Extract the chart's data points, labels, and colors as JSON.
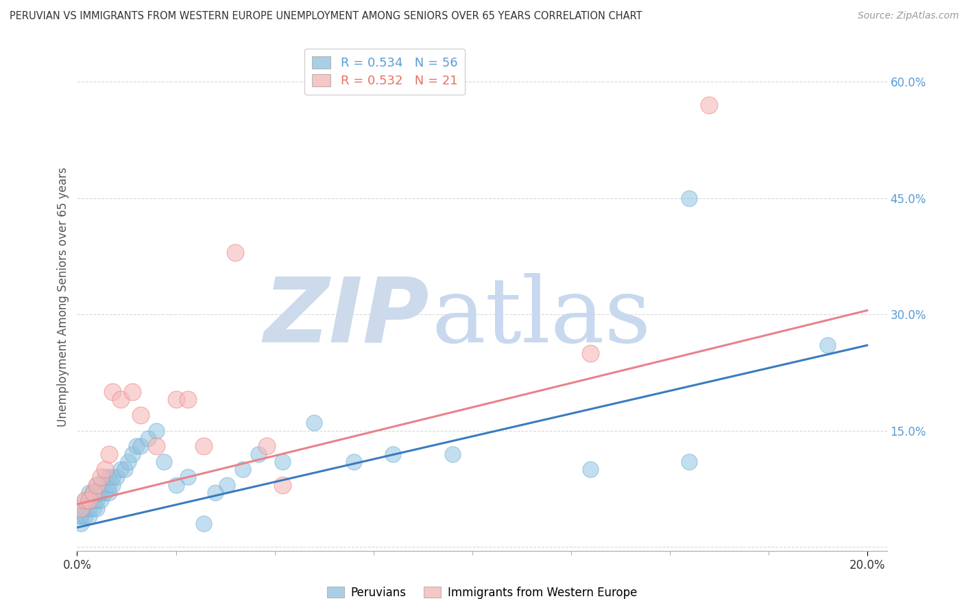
{
  "title": "PERUVIAN VS IMMIGRANTS FROM WESTERN EUROPE UNEMPLOYMENT AMONG SENIORS OVER 65 YEARS CORRELATION CHART",
  "source": "Source: ZipAtlas.com",
  "ylabel": "Unemployment Among Seniors over 65 years",
  "xlim": [
    0.0,
    0.205
  ],
  "ylim": [
    -0.005,
    0.65
  ],
  "yticks": [
    0.0,
    0.15,
    0.3,
    0.45,
    0.6
  ],
  "ytick_labels": [
    "",
    "15.0%",
    "30.0%",
    "45.0%",
    "60.0%"
  ],
  "blue_R": 0.534,
  "blue_N": 56,
  "pink_R": 0.532,
  "pink_N": 21,
  "blue_color": "#93c4e0",
  "pink_color": "#f5b8b8",
  "blue_edge_color": "#6aadd5",
  "pink_edge_color": "#f08080",
  "blue_line_color": "#3a7bbf",
  "pink_line_color": "#e8828a",
  "legend_label_blue": "Peruvians",
  "legend_label_pink": "Immigrants from Western Europe",
  "blue_x": [
    0.001,
    0.001,
    0.001,
    0.002,
    0.002,
    0.002,
    0.002,
    0.003,
    0.003,
    0.003,
    0.003,
    0.003,
    0.004,
    0.004,
    0.004,
    0.004,
    0.005,
    0.005,
    0.005,
    0.005,
    0.006,
    0.006,
    0.006,
    0.007,
    0.007,
    0.008,
    0.008,
    0.008,
    0.009,
    0.009,
    0.01,
    0.011,
    0.012,
    0.013,
    0.014,
    0.015,
    0.016,
    0.018,
    0.02,
    0.022,
    0.025,
    0.028,
    0.032,
    0.035,
    0.038,
    0.042,
    0.046,
    0.052,
    0.06,
    0.07,
    0.08,
    0.095,
    0.13,
    0.155,
    0.155,
    0.19
  ],
  "blue_y": [
    0.03,
    0.04,
    0.04,
    0.04,
    0.05,
    0.05,
    0.06,
    0.04,
    0.05,
    0.06,
    0.06,
    0.07,
    0.05,
    0.06,
    0.07,
    0.07,
    0.05,
    0.06,
    0.07,
    0.08,
    0.06,
    0.07,
    0.08,
    0.07,
    0.09,
    0.07,
    0.08,
    0.09,
    0.08,
    0.09,
    0.09,
    0.1,
    0.1,
    0.11,
    0.12,
    0.13,
    0.13,
    0.14,
    0.15,
    0.11,
    0.08,
    0.09,
    0.03,
    0.07,
    0.08,
    0.1,
    0.12,
    0.11,
    0.16,
    0.11,
    0.12,
    0.12,
    0.1,
    0.45,
    0.11,
    0.26
  ],
  "pink_x": [
    0.001,
    0.002,
    0.003,
    0.004,
    0.005,
    0.006,
    0.007,
    0.008,
    0.009,
    0.011,
    0.014,
    0.016,
    0.02,
    0.025,
    0.028,
    0.032,
    0.04,
    0.048,
    0.052,
    0.13,
    0.16
  ],
  "pink_y": [
    0.05,
    0.06,
    0.06,
    0.07,
    0.08,
    0.09,
    0.1,
    0.12,
    0.2,
    0.19,
    0.2,
    0.17,
    0.13,
    0.19,
    0.19,
    0.13,
    0.38,
    0.13,
    0.08,
    0.25,
    0.57
  ],
  "watermark_zip_color": "#ccdaec",
  "watermark_atlas_color": "#c8d8ee",
  "background_color": "#ffffff",
  "grid_color": "#d8d8d8",
  "blue_line_x0": 0.0,
  "blue_line_y0": 0.025,
  "blue_line_x1": 0.2,
  "blue_line_y1": 0.26,
  "pink_line_x0": 0.0,
  "pink_line_y0": 0.055,
  "pink_line_x1": 0.2,
  "pink_line_y1": 0.305
}
